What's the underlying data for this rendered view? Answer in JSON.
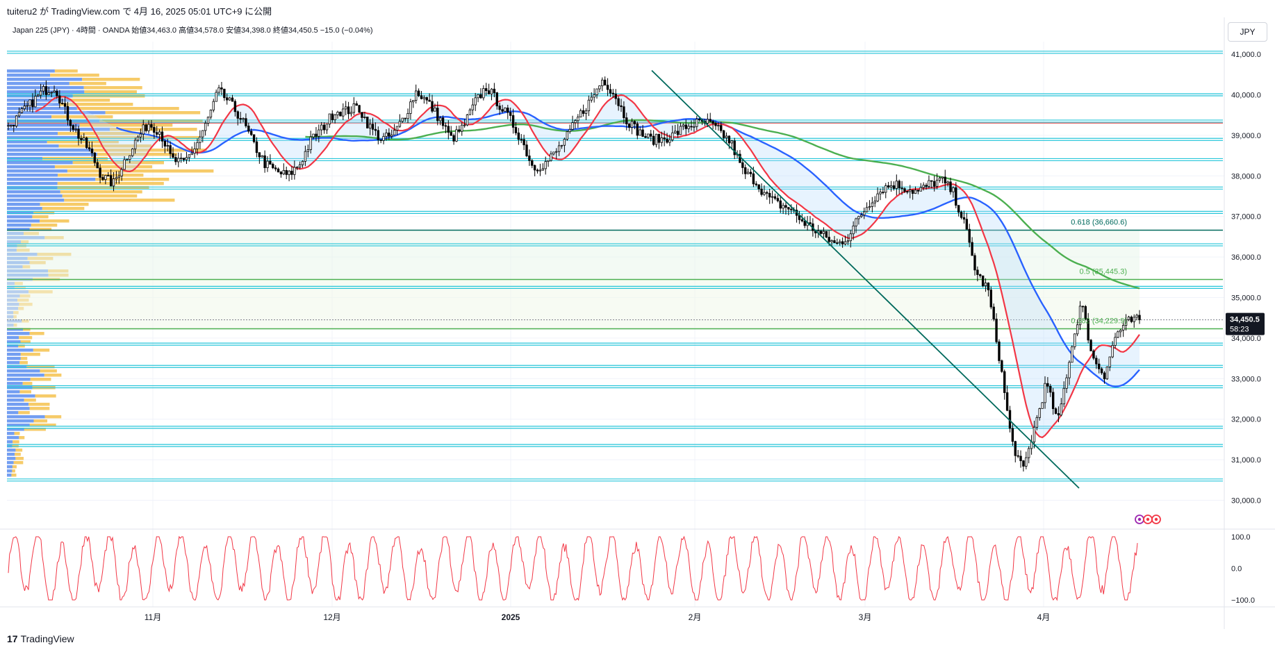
{
  "header": {
    "published_by": "tuiteru2 が TradingView.com で 4月 16, 2025 05:01 UTC+9 に公開",
    "instrument": "Japan 225 (JPY)",
    "interval": "4時間",
    "broker": "OANDA",
    "ohlc_text": "始値34,463.0 高値34,578.0 安値34,398.0 終値34,450.5 −15.0 (−0.04%)",
    "unit": "JPY"
  },
  "price_axis": {
    "ticks": [
      "41,000.0",
      "40,000.0",
      "39,000.0",
      "38,000.0",
      "37,000.0",
      "36,000.0",
      "35,000.0",
      "34,000.0",
      "33,000.0",
      "32,000.0",
      "31,000.0",
      "30,000.0"
    ],
    "last_price": "34,450.5",
    "countdown": "58:23"
  },
  "osc_axis": {
    "ticks": [
      "100.0",
      "0.0",
      "−100.0"
    ]
  },
  "time_axis": {
    "labels": [
      "11月",
      "12月",
      "2025",
      "2月",
      "3月",
      "4月"
    ]
  },
  "fib_labels": [
    "0.618 (36,660.6)",
    "0.5 (35,445.3)",
    "0.382 (34,229.9)"
  ],
  "footer": {
    "brand": "TradingView",
    "logo": "17"
  },
  "colors": {
    "candle": "#000000",
    "ma_red": "#f23645",
    "ma_blue": "#2962ff",
    "ma_green": "#4caf50",
    "trendline": "#00695c",
    "hline": "#26c6da",
    "vp_blue": "#5b8def",
    "vp_yellow": "#f5c24f",
    "fib_green": "#4caf50",
    "osc": "#f23645"
  },
  "chart_data": {
    "type": "line",
    "title": "Japan 225 (JPY) · 4時間 · OANDA",
    "x_labels": [
      "11月",
      "12月",
      "2025",
      "2月",
      "3月",
      "4月"
    ],
    "ylim": [
      29700,
      41300
    ],
    "grid": true,
    "series": [
      {
        "kind": "price_close",
        "values": [
          39200,
          39500,
          39800,
          40100,
          40200,
          39500,
          39000,
          38600,
          38000,
          37800,
          38400,
          38900,
          39300,
          39100,
          38400,
          38300,
          38700,
          39300,
          40100,
          39800,
          39400,
          38800,
          38300,
          38100,
          38000,
          38300,
          38900,
          39200,
          39600,
          39600,
          39700,
          39200,
          38900,
          39000,
          39500,
          40100,
          39800,
          39400,
          38900,
          39200,
          39800,
          40200,
          39800,
          39400,
          38900,
          38200,
          38300,
          38600,
          39000,
          39500,
          39900,
          40400,
          40000,
          39400,
          39100,
          38900,
          38900,
          39000,
          39200,
          39300,
          39300,
          39100,
          38800,
          38100,
          37900,
          37500,
          37300,
          37200,
          36900,
          36700,
          36500,
          36300,
          36500,
          37000,
          37400,
          37700,
          37800,
          37700,
          37600,
          37800,
          37900,
          37600,
          36800,
          35600,
          35200,
          33500,
          31500,
          30700,
          31800,
          32900,
          31900,
          33500,
          34900,
          33500,
          33100,
          34100,
          34400,
          34450
        ]
      },
      {
        "kind": "ma_fast",
        "name": "",
        "color": "#f23645"
      },
      {
        "kind": "ma_mid",
        "name": "",
        "color": "#2962ff"
      },
      {
        "kind": "ma_slow",
        "name": "",
        "color": "#4caf50"
      }
    ],
    "horizontal_levels": [
      41050,
      40000,
      39350,
      38900,
      38400,
      37700,
      37100,
      36660.6,
      36300,
      35445.3,
      35250,
      34229.9,
      33850,
      33300,
      32800,
      31800,
      31350,
      30500
    ],
    "fib_levels": [
      {
        "ratio": 0.618,
        "price": 36660.6
      },
      {
        "ratio": 0.5,
        "price": 35445.3
      },
      {
        "ratio": 0.382,
        "price": 34229.9
      }
    ],
    "trendline": {
      "from": {
        "label": "2月",
        "price": 40600
      },
      "to": {
        "label": "4月",
        "price": 30300
      }
    },
    "oscillator": {
      "range": [
        -100,
        100
      ]
    }
  }
}
